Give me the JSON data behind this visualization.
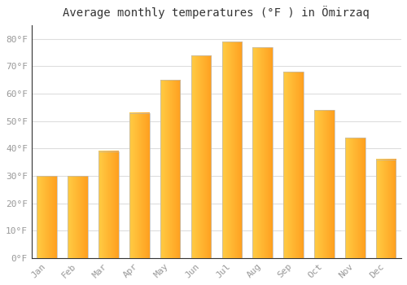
{
  "title": "Average monthly temperatures (°F ) in Ömirzaq",
  "months": [
    "Jan",
    "Feb",
    "Mar",
    "Apr",
    "May",
    "Jun",
    "Jul",
    "Aug",
    "Sep",
    "Oct",
    "Nov",
    "Dec"
  ],
  "values": [
    30,
    30,
    39,
    53,
    65,
    74,
    79,
    77,
    68,
    54,
    44,
    36
  ],
  "bar_color_left": "#FFCC44",
  "bar_color_right": "#FFA020",
  "ylim": [
    0,
    85
  ],
  "yticks": [
    0,
    10,
    20,
    30,
    40,
    50,
    60,
    70,
    80
  ],
  "ytick_labels": [
    "0°F",
    "10°F",
    "20°F",
    "30°F",
    "40°F",
    "50°F",
    "60°F",
    "70°F",
    "80°F"
  ],
  "bg_color": "#ffffff",
  "grid_color": "#dddddd",
  "title_fontsize": 10,
  "tick_fontsize": 8,
  "bar_width": 0.65
}
